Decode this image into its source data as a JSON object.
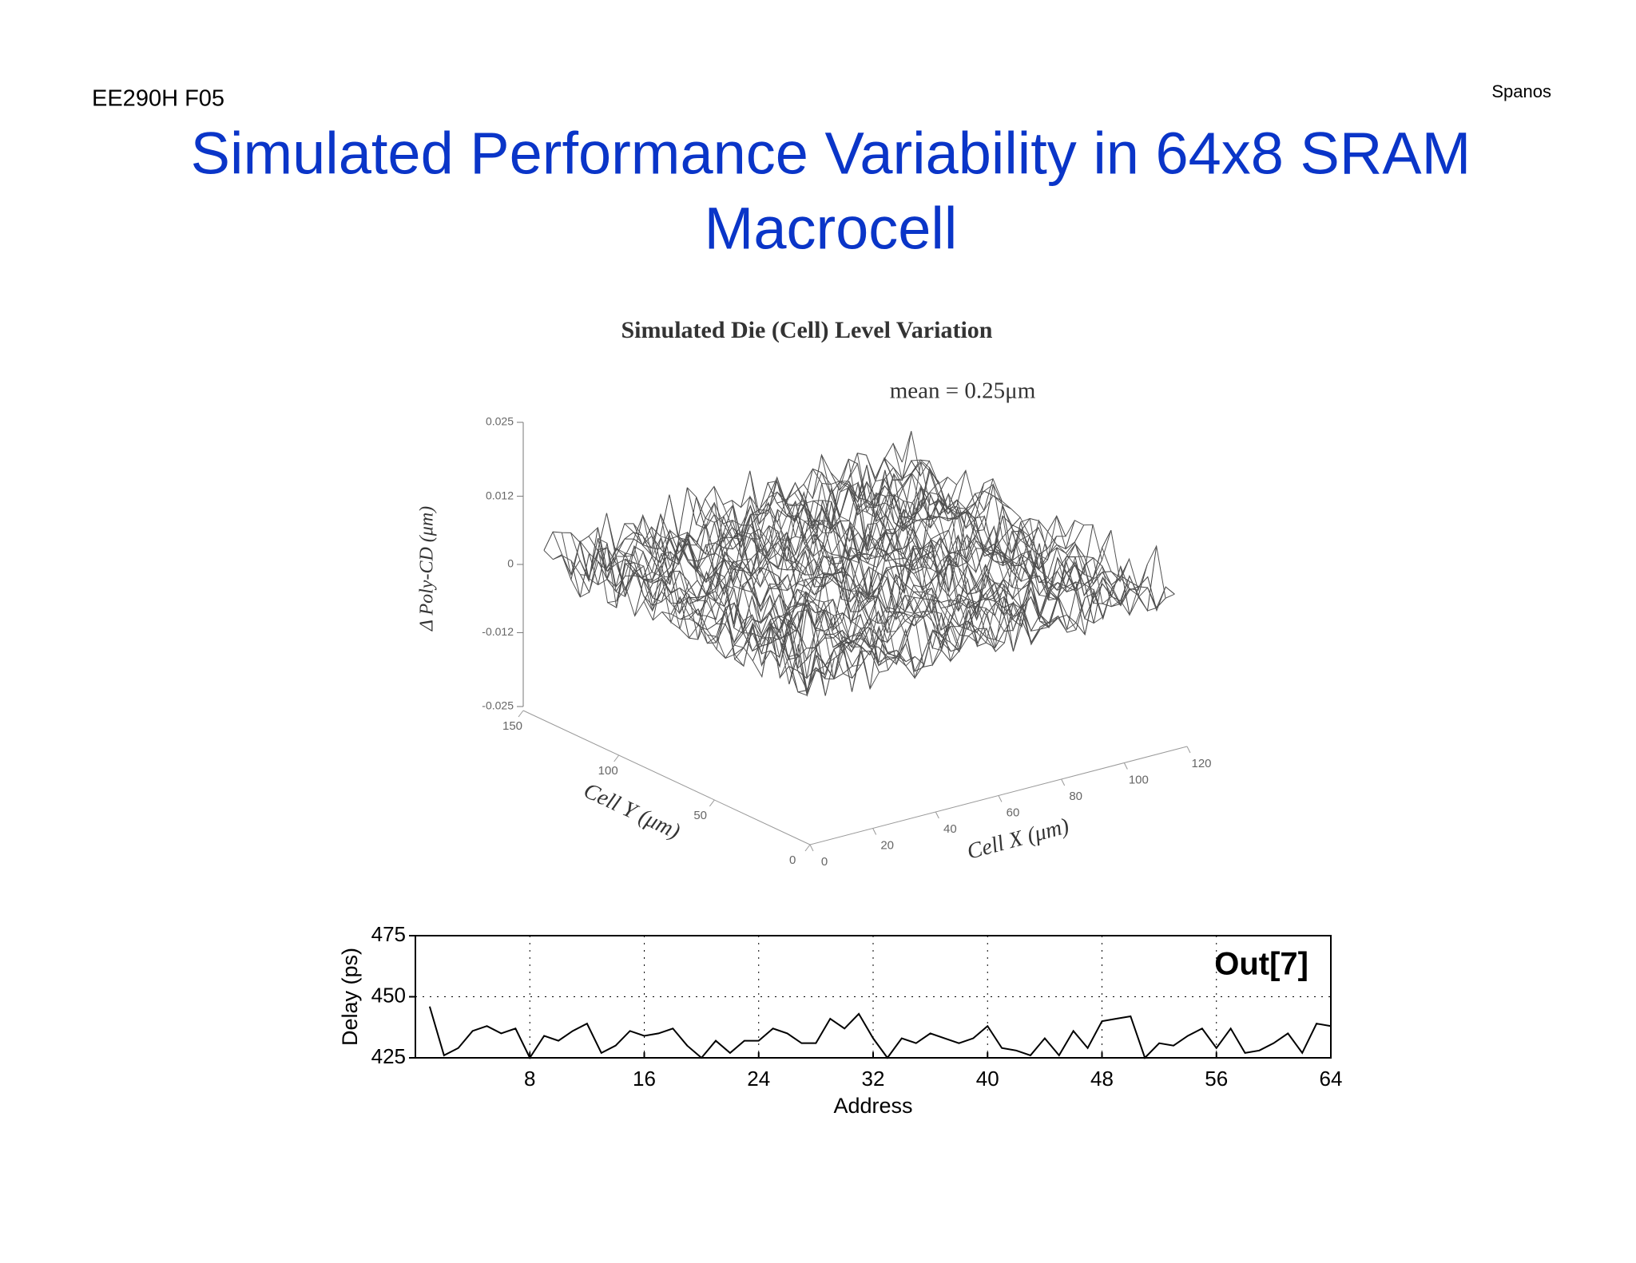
{
  "header": {
    "course": "EE290H F05",
    "author": "Spanos"
  },
  "title": [
    "Simulated Performance Variability in 64x8 SRAM",
    "Macrocell"
  ],
  "figure": {
    "title": "Simulated Die (Cell) Level Variation",
    "annotation": "mean = 0.25μm",
    "zlabel": "Δ Poly-CD (μm)",
    "ylabel": "Cell Y (μm)",
    "xlabel": "Cell X (μm)",
    "zticks": [
      0.025,
      0.012,
      0,
      -0.012,
      -0.025
    ],
    "yticks": [
      150,
      100,
      50,
      0
    ],
    "xticks": [
      0,
      20,
      40,
      60,
      80,
      100,
      120
    ]
  },
  "chart_data": {
    "type": "line",
    "annotation": "Out[7]",
    "xlabel": "Address",
    "ylabel": "Delay (ps)",
    "x": [
      1,
      2,
      3,
      4,
      5,
      6,
      7,
      8,
      9,
      10,
      11,
      12,
      13,
      14,
      15,
      16,
      17,
      18,
      19,
      20,
      21,
      22,
      23,
      24,
      25,
      26,
      27,
      28,
      29,
      30,
      31,
      32,
      33,
      34,
      35,
      36,
      37,
      38,
      39,
      40,
      41,
      42,
      43,
      44,
      45,
      46,
      47,
      48,
      49,
      50,
      51,
      52,
      53,
      54,
      55,
      56,
      57,
      58,
      59,
      60,
      61,
      62,
      63,
      64
    ],
    "series": [
      {
        "color": "#000000",
        "values": [
          446,
          426,
          429,
          436,
          438,
          435,
          437,
          425,
          434,
          432,
          436,
          439,
          427,
          430,
          436,
          434,
          435,
          437,
          430,
          425,
          432,
          427,
          432,
          432,
          437,
          435,
          431,
          431,
          441,
          437,
          443,
          433,
          425,
          433,
          431,
          435,
          433,
          431,
          433,
          438,
          429,
          428,
          426,
          433,
          426,
          436,
          429,
          440,
          441,
          442,
          425,
          431,
          430,
          434,
          437,
          429,
          437,
          427,
          428,
          431,
          435,
          427,
          439,
          438
        ]
      }
    ],
    "xlim": [
      0,
      64
    ],
    "xticks": [
      8,
      16,
      24,
      32,
      40,
      48,
      56,
      64
    ],
    "ylim": [
      425,
      475
    ],
    "yticks": [
      425,
      450,
      475
    ],
    "grid": true
  }
}
